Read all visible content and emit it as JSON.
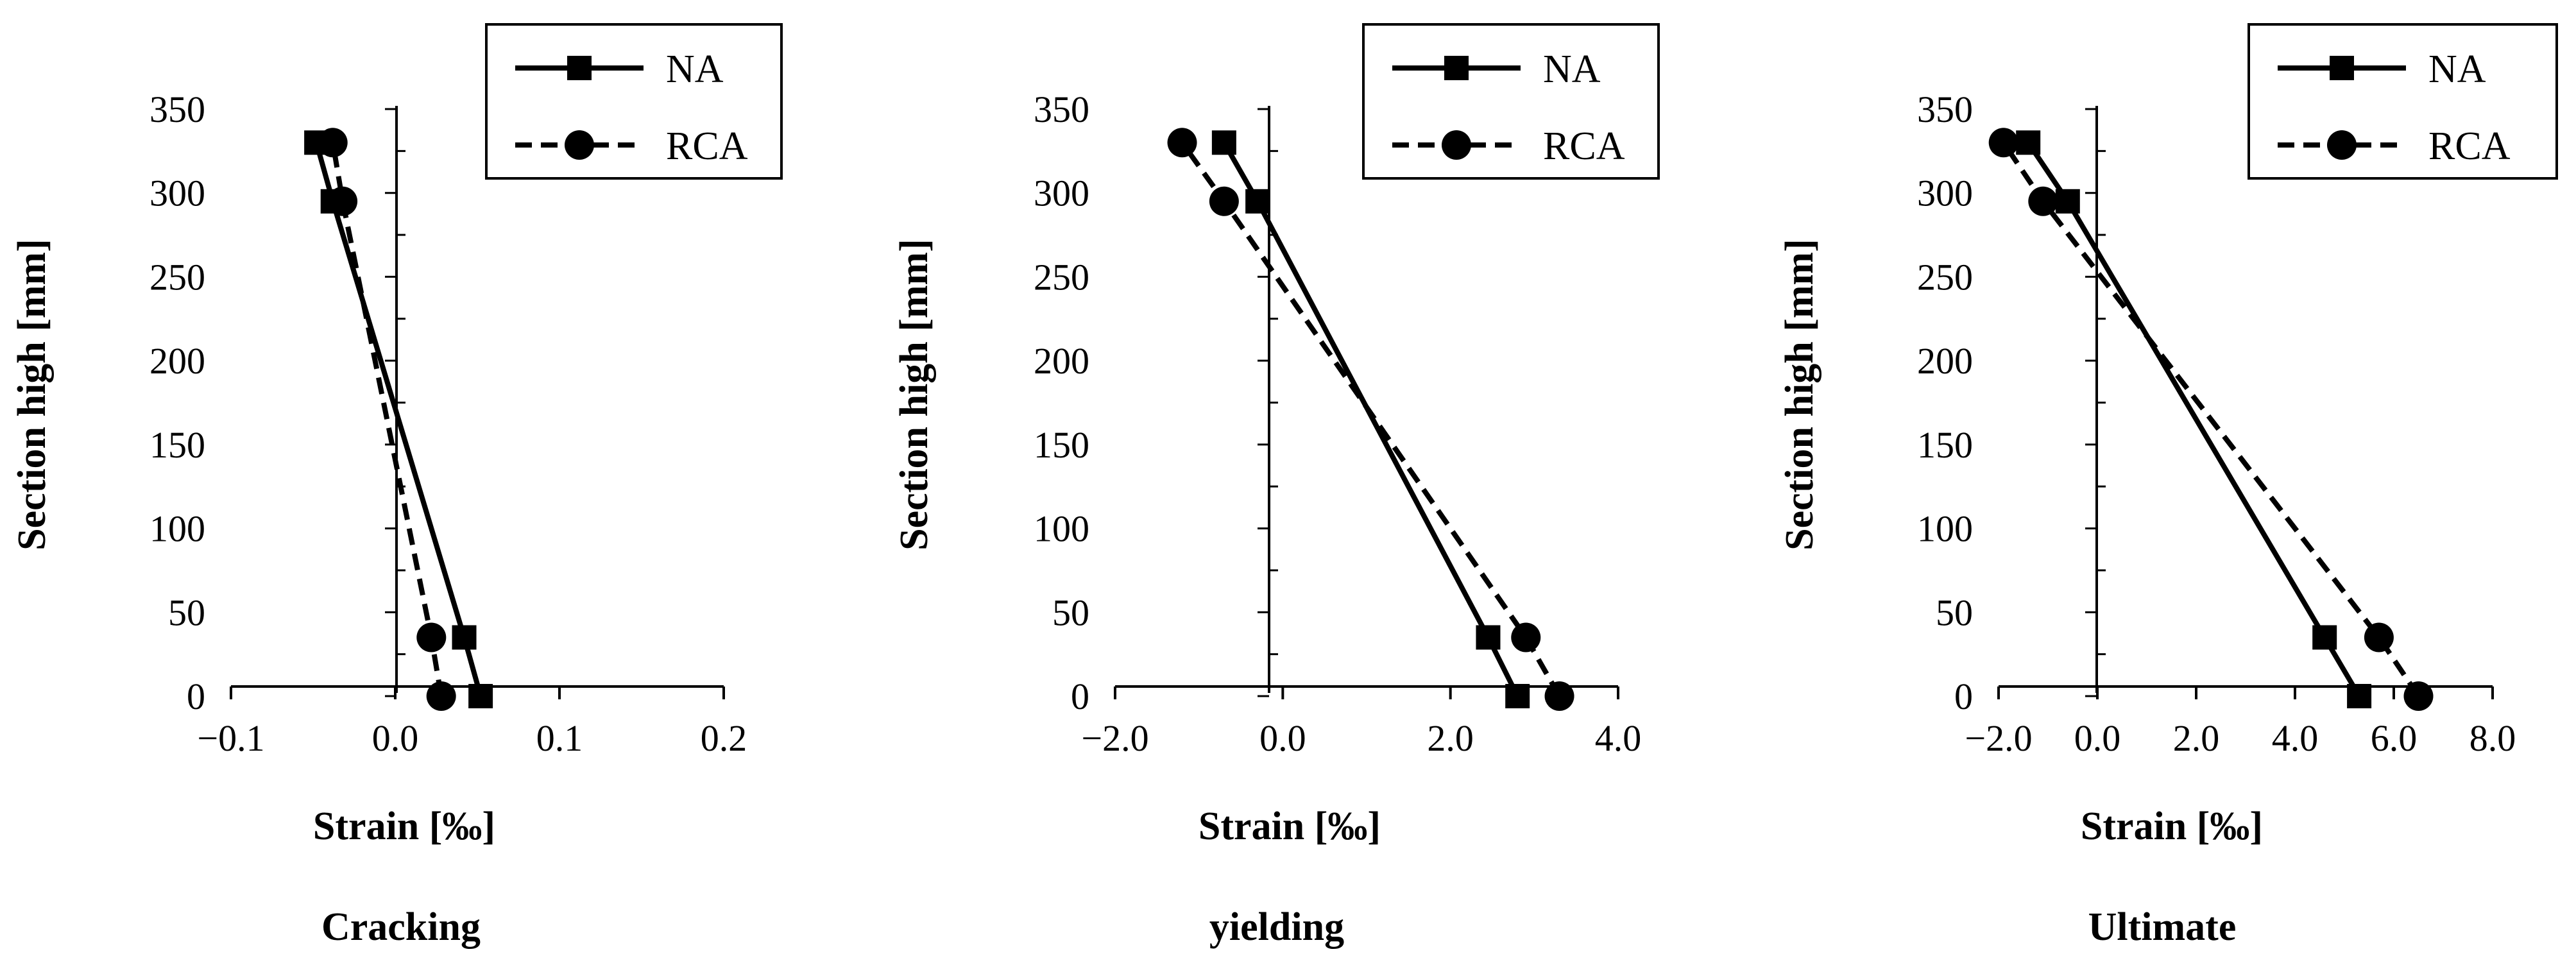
{
  "chart_data": [
    {
      "type": "line",
      "caption": "Cracking",
      "xlabel": "Strain [‰]",
      "ylabel": "Section high [mm]",
      "xlim": [
        -0.1,
        0.2
      ],
      "ylim": [
        0,
        350
      ],
      "xticks": [
        "−0.1",
        "0.0",
        "0.1",
        "0.2"
      ],
      "yticks": [
        "0",
        "50",
        "100",
        "150",
        "200",
        "250",
        "300",
        "350"
      ],
      "legend": "top-right",
      "series": [
        {
          "name": "NA",
          "marker": "square",
          "dash": "solid",
          "x": [
            0.052,
            0.042,
            -0.038,
            -0.048
          ],
          "y": [
            0,
            35,
            295,
            330
          ]
        },
        {
          "name": "RCA",
          "marker": "circle",
          "dash": "dashed",
          "x": [
            0.028,
            0.022,
            -0.032,
            -0.038
          ],
          "y": [
            0,
            35,
            295,
            330
          ]
        }
      ]
    },
    {
      "type": "line",
      "caption": "yielding",
      "xlabel": "Strain [‰]",
      "ylabel": "Section high [mm]",
      "xlim": [
        -2.0,
        4.0
      ],
      "ylim": [
        0,
        350
      ],
      "xticks": [
        "−2.0",
        "0.0",
        "2.0",
        "4.0"
      ],
      "yticks": [
        "0",
        "50",
        "100",
        "150",
        "200",
        "250",
        "300",
        "350"
      ],
      "legend": "top-right",
      "series": [
        {
          "name": "NA",
          "marker": "square",
          "dash": "solid",
          "x": [
            2.8,
            2.45,
            -0.3,
            -0.7
          ],
          "y": [
            0,
            35,
            295,
            330
          ]
        },
        {
          "name": "RCA",
          "marker": "circle",
          "dash": "dashed",
          "x": [
            3.3,
            2.9,
            -0.7,
            -1.2
          ],
          "y": [
            0,
            35,
            295,
            330
          ]
        }
      ]
    },
    {
      "type": "line",
      "caption": "Ultimate",
      "xlabel": "Strain [‰]",
      "ylabel": "Section high [mm]",
      "xlim": [
        -2.0,
        8.0
      ],
      "ylim": [
        0,
        350
      ],
      "xticks": [
        "−2.0",
        "0.0",
        "2.0",
        "4.0",
        "6.0",
        "8.0"
      ],
      "yticks": [
        "0",
        "50",
        "100",
        "150",
        "200",
        "250",
        "300",
        "350"
      ],
      "legend": "top-right",
      "series": [
        {
          "name": "NA",
          "marker": "square",
          "dash": "solid",
          "x": [
            5.3,
            4.6,
            -0.6,
            -1.4
          ],
          "y": [
            0,
            35,
            295,
            330
          ]
        },
        {
          "name": "RCA",
          "marker": "circle",
          "dash": "dashed",
          "x": [
            6.5,
            5.7,
            -1.1,
            -1.9
          ],
          "y": [
            0,
            35,
            295,
            330
          ]
        }
      ]
    }
  ]
}
